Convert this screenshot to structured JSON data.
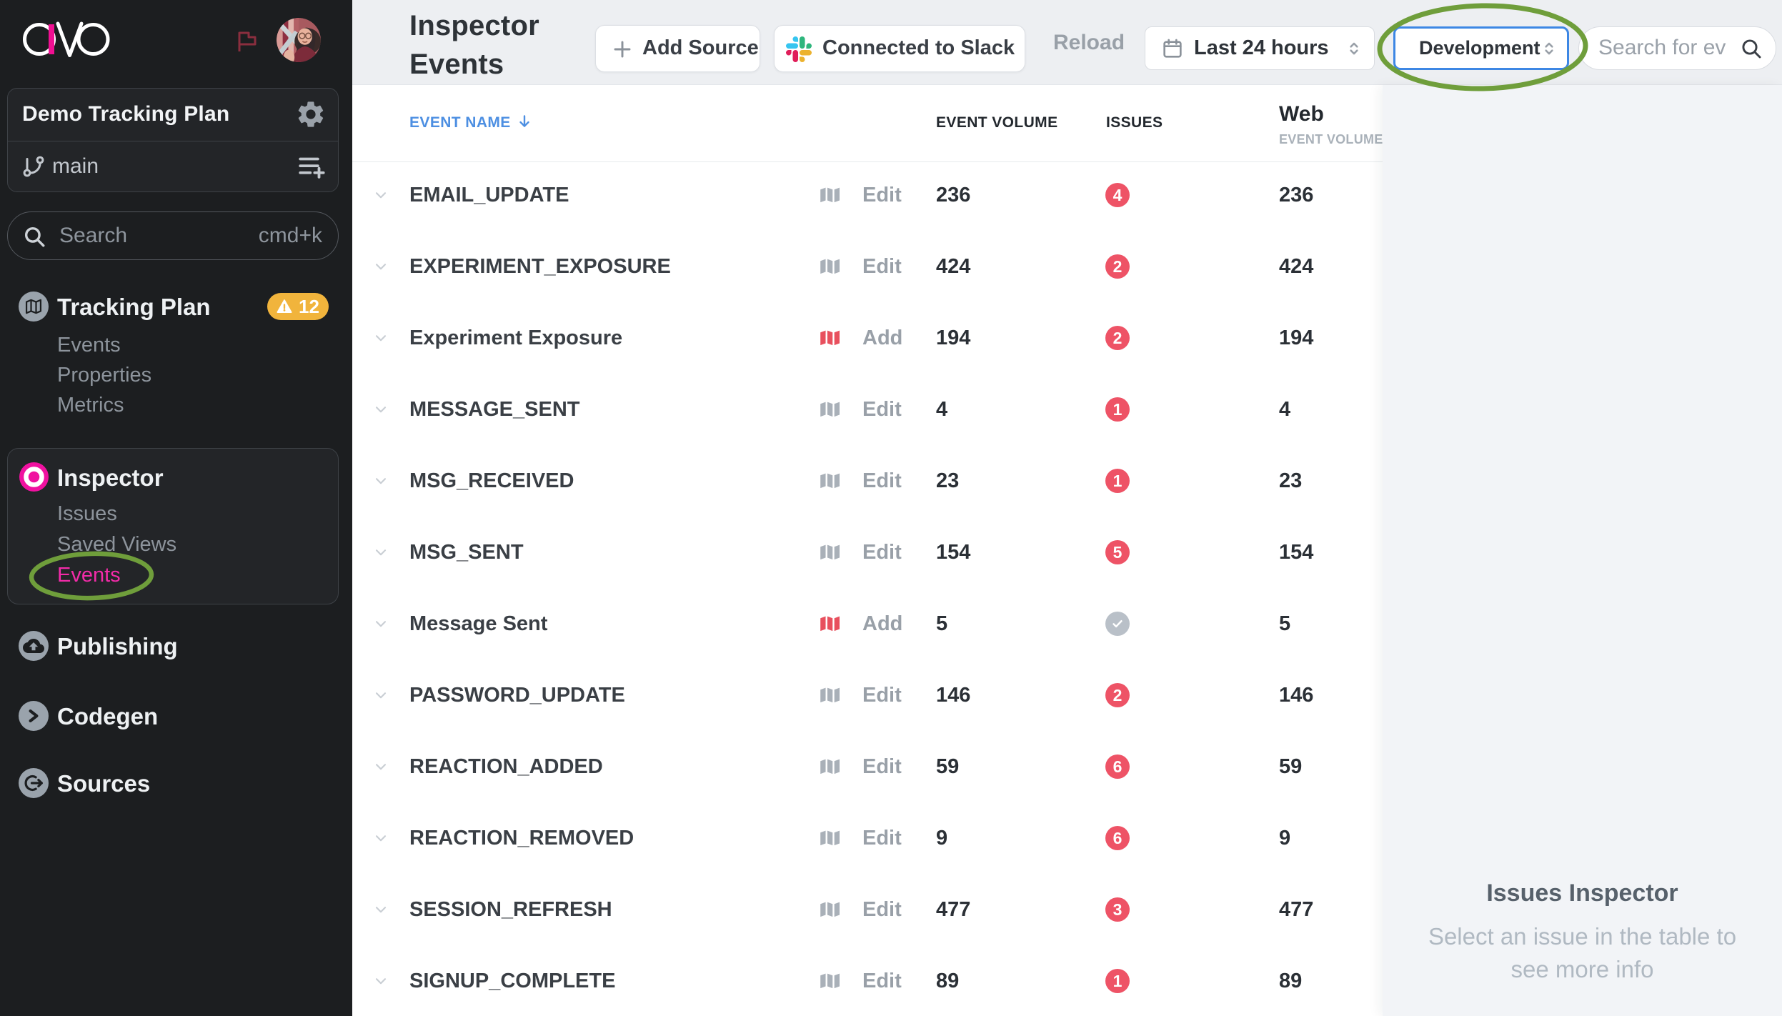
{
  "brand": {
    "logo_text": "avo"
  },
  "sidebar": {
    "workspace_name": "Demo Tracking Plan",
    "branch_name": "main",
    "search_label": "Search",
    "search_shortcut": "cmd+k",
    "tracking_plan": {
      "label": "Tracking Plan",
      "badge_count": "12",
      "items": [
        "Events",
        "Properties",
        "Metrics"
      ]
    },
    "inspector": {
      "label": "Inspector",
      "items": [
        "Issues",
        "Saved Views",
        "Events"
      ],
      "active_item": "Events"
    },
    "publishing_label": "Publishing",
    "codegen_label": "Codegen",
    "sources_label": "Sources"
  },
  "header": {
    "title": "Inspector Events",
    "add_source_label": "Add Source",
    "slack_label": "Connected to Slack",
    "reload_label": "Reload",
    "time_range_value": "Last 24 hours",
    "env_value": "Development",
    "search_placeholder": "Search for ev"
  },
  "table": {
    "col_event_name": "EVENT NAME",
    "col_event_volume": "EVENT VOLUME",
    "col_issues": "ISSUES",
    "col_source_name": "Web",
    "col_source_metric": "EVENT VOLUME",
    "rows": [
      {
        "name": "EMAIL_UPDATE",
        "action": "Edit",
        "in_plan": true,
        "volume": "236",
        "issues": "4",
        "resolved": false,
        "web_volume": "236"
      },
      {
        "name": "EXPERIMENT_EXPOSURE",
        "action": "Edit",
        "in_plan": true,
        "volume": "424",
        "issues": "2",
        "resolved": false,
        "web_volume": "424"
      },
      {
        "name": "Experiment Exposure",
        "action": "Add",
        "in_plan": false,
        "volume": "194",
        "issues": "2",
        "resolved": false,
        "web_volume": "194"
      },
      {
        "name": "MESSAGE_SENT",
        "action": "Edit",
        "in_plan": true,
        "volume": "4",
        "issues": "1",
        "resolved": false,
        "web_volume": "4"
      },
      {
        "name": "MSG_RECEIVED",
        "action": "Edit",
        "in_plan": true,
        "volume": "23",
        "issues": "1",
        "resolved": false,
        "web_volume": "23"
      },
      {
        "name": "MSG_SENT",
        "action": "Edit",
        "in_plan": true,
        "volume": "154",
        "issues": "5",
        "resolved": false,
        "web_volume": "154"
      },
      {
        "name": "Message Sent",
        "action": "Add",
        "in_plan": false,
        "volume": "5",
        "issues": "",
        "resolved": true,
        "web_volume": "5"
      },
      {
        "name": "PASSWORD_UPDATE",
        "action": "Edit",
        "in_plan": true,
        "volume": "146",
        "issues": "2",
        "resolved": false,
        "web_volume": "146"
      },
      {
        "name": "REACTION_ADDED",
        "action": "Edit",
        "in_plan": true,
        "volume": "59",
        "issues": "6",
        "resolved": false,
        "web_volume": "59"
      },
      {
        "name": "REACTION_REMOVED",
        "action": "Edit",
        "in_plan": true,
        "volume": "9",
        "issues": "6",
        "resolved": false,
        "web_volume": "9"
      },
      {
        "name": "SESSION_REFRESH",
        "action": "Edit",
        "in_plan": true,
        "volume": "477",
        "issues": "3",
        "resolved": false,
        "web_volume": "477"
      },
      {
        "name": "SIGNUP_COMPLETE",
        "action": "Edit",
        "in_plan": true,
        "volume": "89",
        "issues": "1",
        "resolved": false,
        "web_volume": "89"
      }
    ]
  },
  "issues_panel": {
    "title": "Issues Inspector",
    "subtitle": "Select an issue in the table to see more info"
  },
  "annotations": {
    "highlight_color": "#6f9e3b"
  },
  "colors": {
    "sidebar_bg": "#1c1e20",
    "brand_pink": "#f10f92",
    "active_pink": "#f32ba9",
    "warning_yellow": "#f1b43c",
    "issue_red": "#ee5366",
    "map_red": "#e8505e",
    "header_blue": "#4d8fe2",
    "env_border_blue": "#3d87e4",
    "toolbar_gray": "#edeff2",
    "panel_gray": "#f2f4f7"
  }
}
